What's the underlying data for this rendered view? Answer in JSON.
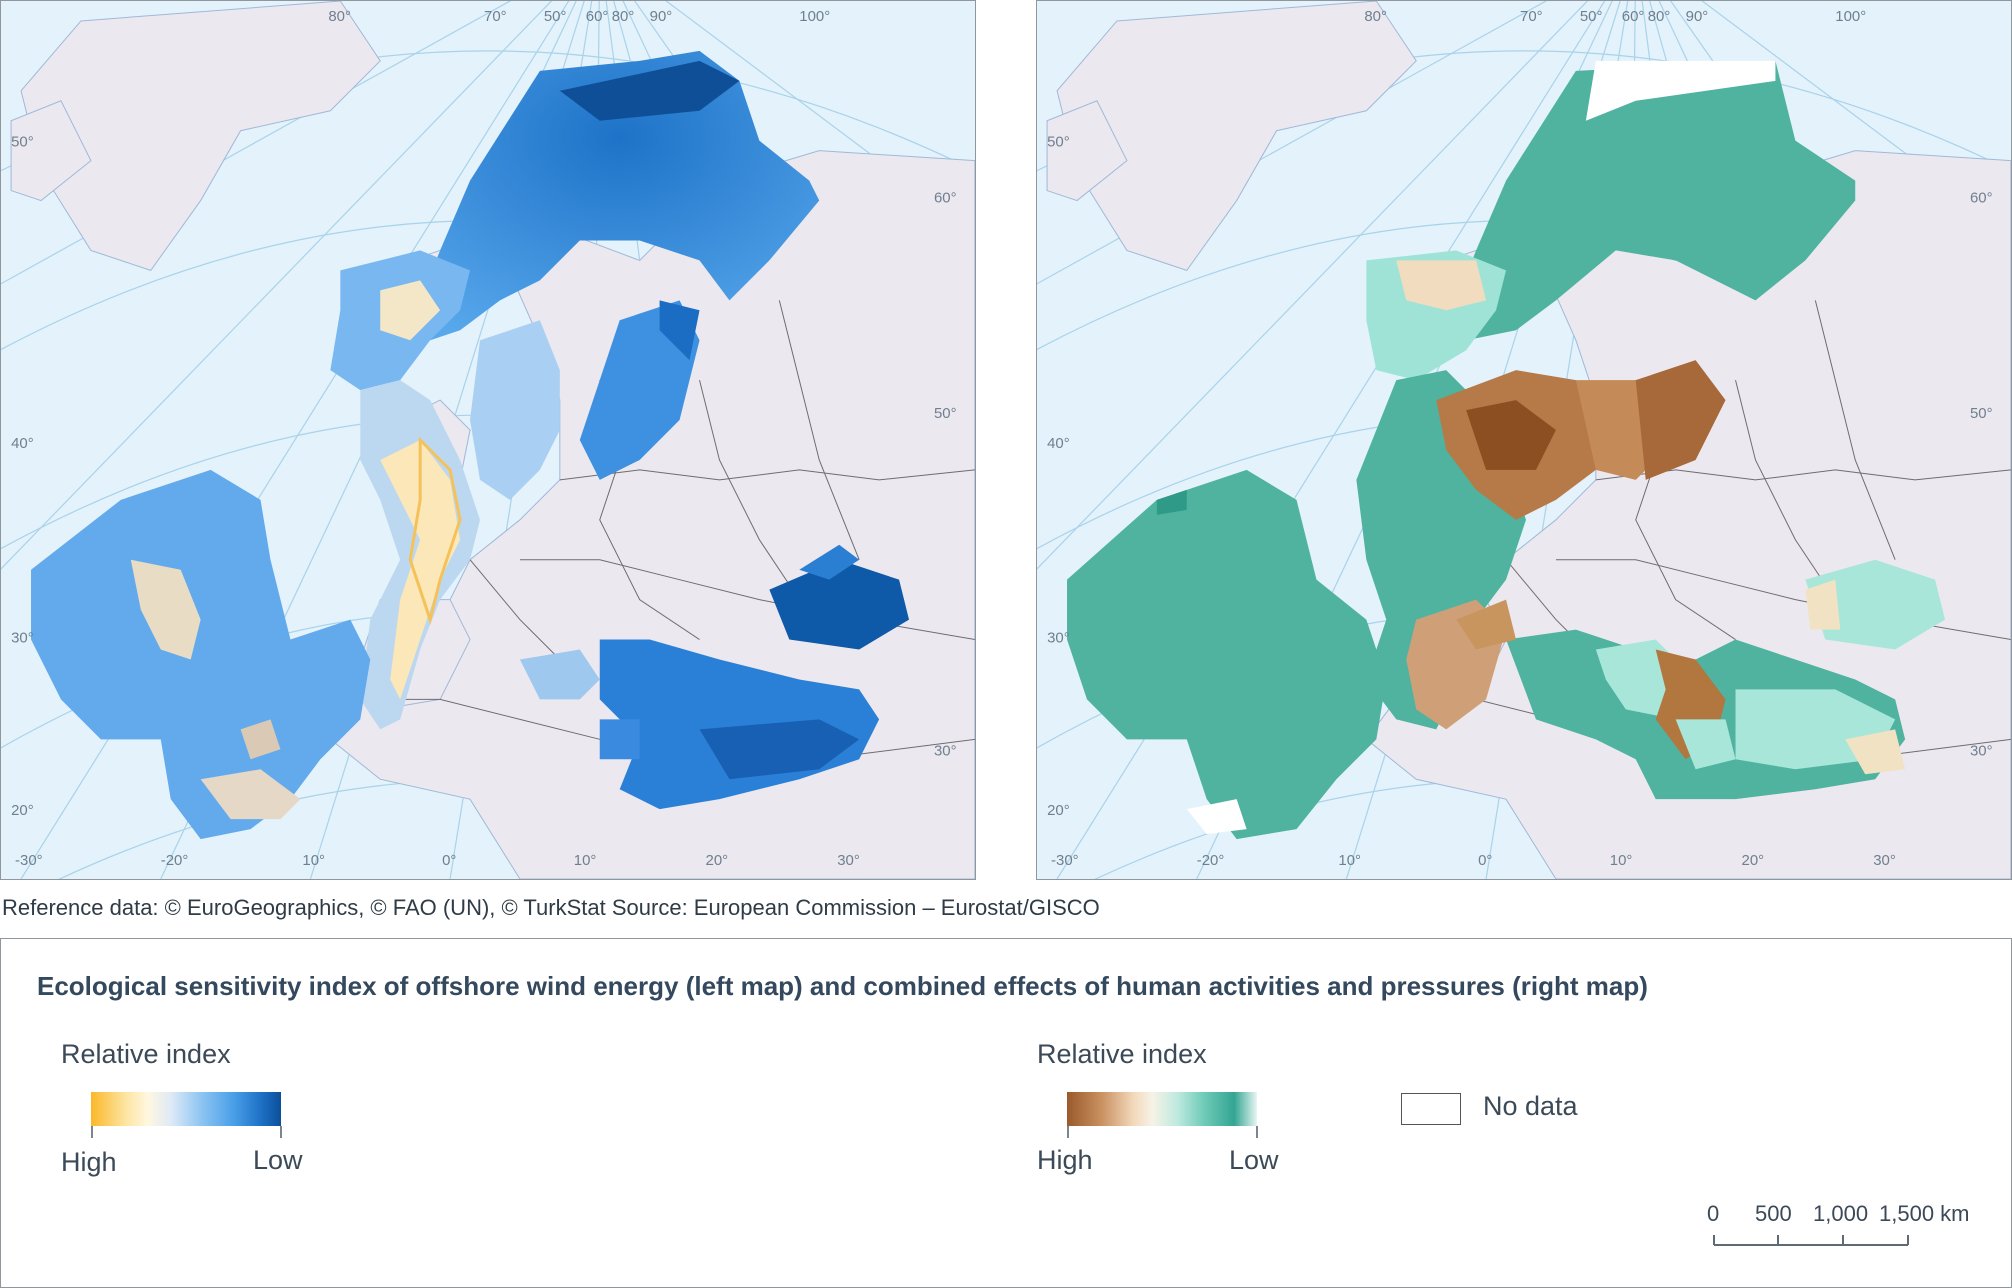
{
  "maps": {
    "graticule_labels": [
      "80°",
      "70°",
      "50°",
      "60°",
      "80°",
      "90°",
      "100°",
      "50°",
      "60°",
      "50°",
      "40°",
      "30°",
      "30°",
      "20°",
      "-30°",
      "-20°",
      "10°",
      "0°",
      "10°",
      "20°",
      "30°"
    ],
    "left": {
      "legend_ramp": [
        "#fbb829",
        "#fde4a0",
        "#fff7e0",
        "#8ec5f2",
        "#4a9fe8",
        "#1c6fc4",
        "#0b4f9a"
      ]
    },
    "right": {
      "legend_ramp": [
        "#9a5a2b",
        "#c99060",
        "#f2d9bb",
        "#bfeadf",
        "#6fcbb8",
        "#34a593"
      ]
    }
  },
  "colors": {
    "sea": "#e3f2fb",
    "land": "#ece8f0",
    "border": "#6d6d6d",
    "graticule": "#a9d3ea",
    "nodata": "#ffffff"
  },
  "reference_text": "Reference data: © EuroGeographics, © FAO (UN), © TurkStat Source: European Commission – Eurostat/GISCO",
  "legend": {
    "title": "Ecological sensitivity index of offshore wind energy (left map) and combined effects of human activities and pressures (right map)",
    "left": {
      "heading": "Relative index",
      "high": "High",
      "low": "Low"
    },
    "right": {
      "heading": "Relative index",
      "high": "High",
      "low": "Low"
    },
    "nodata": "No data",
    "scalebar": {
      "labels": [
        "0",
        "500",
        "1,000",
        "1,500 km"
      ]
    }
  }
}
